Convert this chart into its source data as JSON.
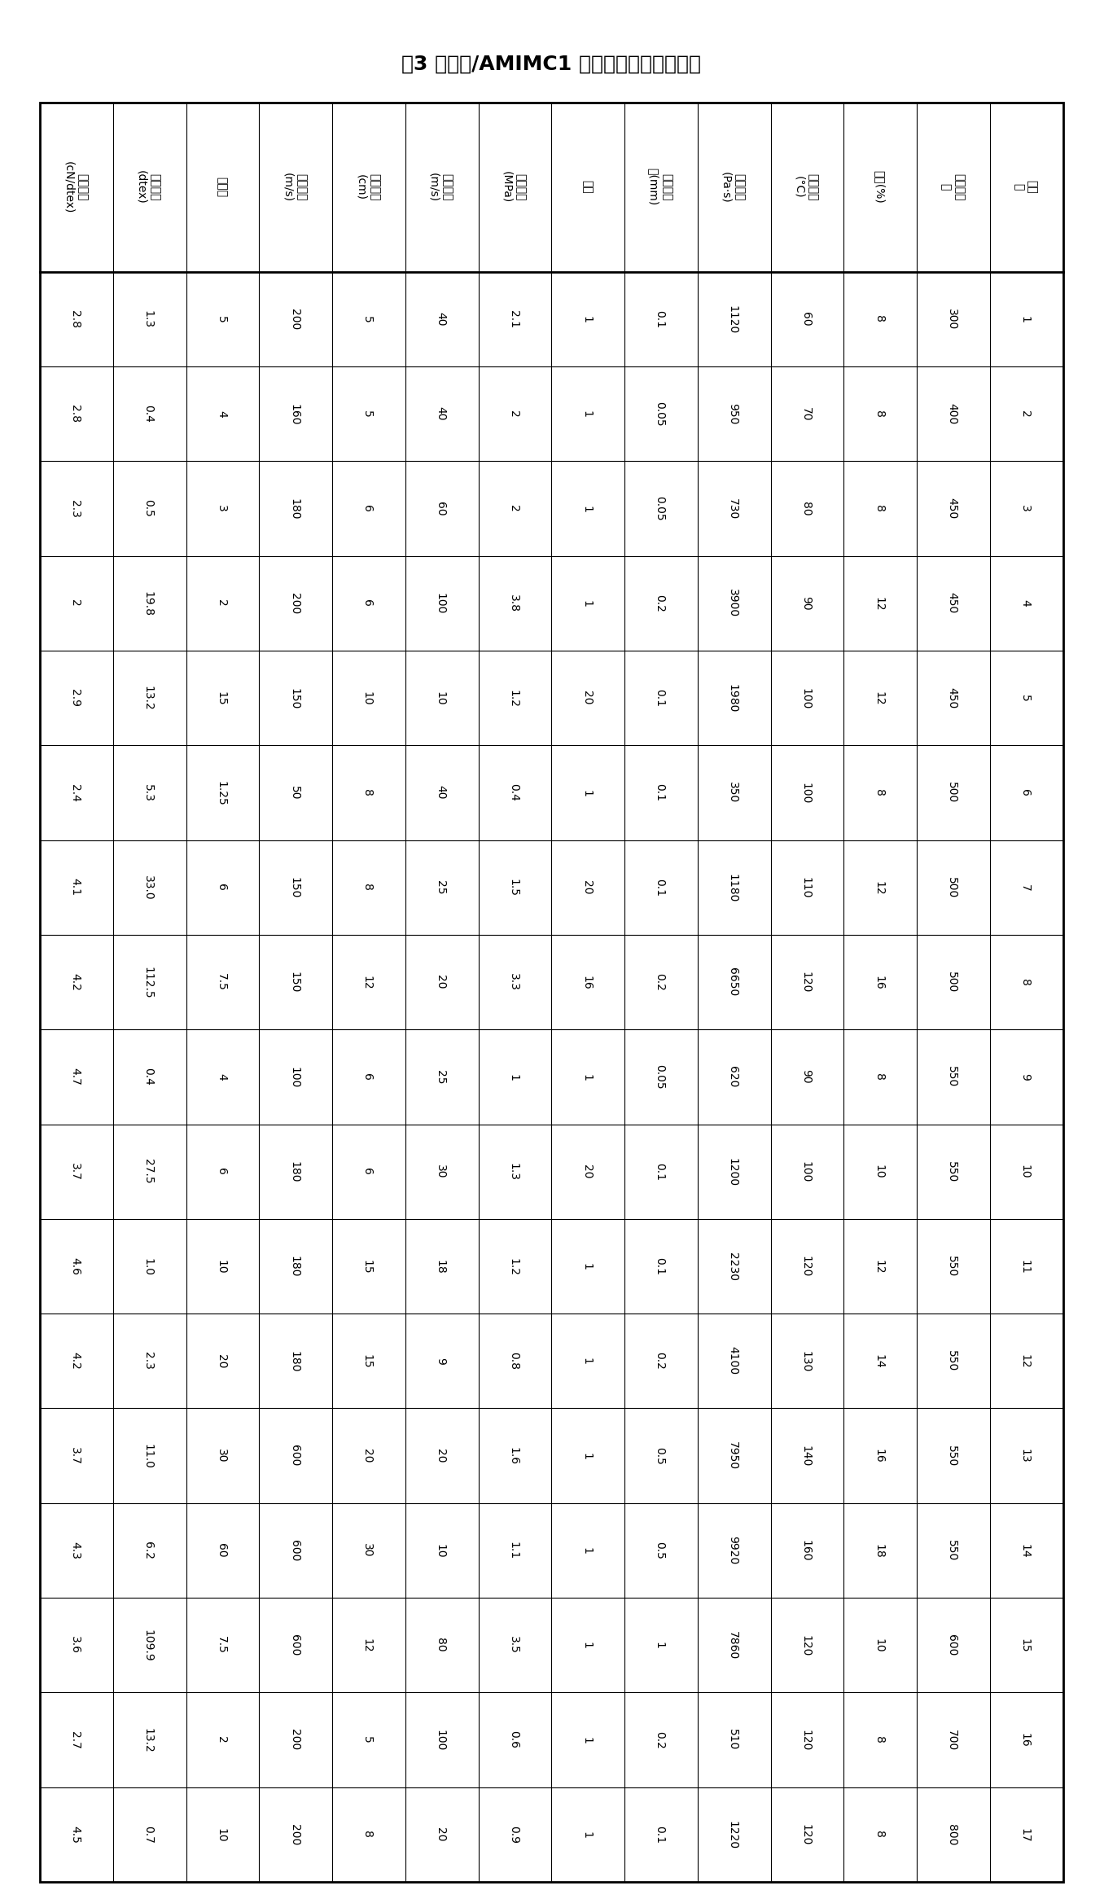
{
  "title": "表3 纤维素/AMIMC1 溶液干喷湿纺的实施例",
  "row_headers": [
    "实施\n例",
    "平均聚合\n度",
    "浓度(%)",
    "喷丝温度\n(°C)",
    "溶液黏度\n(Pa·s)",
    "喷丝板孔\n径(mm)",
    "孔数",
    "喷丝压力\n(MPa)",
    "喷丝速度\n(m/s)",
    "气隙长度\n(cm)",
    "牵伸速度\n(m/s)",
    "牵伸比",
    "产品纤度\n(dtex)",
    "拉伸强度\n(cN/dtex)"
  ],
  "col_labels": [
    "1",
    "2",
    "3",
    "4",
    "5",
    "6",
    "7",
    "8",
    "9",
    "10",
    "11",
    "12",
    "13",
    "14",
    "15",
    "16",
    "17"
  ],
  "data_rows": [
    [
      "1",
      "2",
      "3",
      "4",
      "5",
      "6",
      "7",
      "8",
      "9",
      "10",
      "11",
      "12",
      "13",
      "14",
      "15",
      "16",
      "17"
    ],
    [
      "300",
      "400",
      "450",
      "450",
      "450",
      "500",
      "500",
      "500",
      "550",
      "550",
      "550",
      "550",
      "550",
      "550",
      "600",
      "700",
      "800"
    ],
    [
      "8",
      "8",
      "8",
      "12",
      "12",
      "8",
      "12",
      "16",
      "8",
      "10",
      "12",
      "14",
      "16",
      "18",
      "10",
      "8",
      "8"
    ],
    [
      "60",
      "70",
      "80",
      "90",
      "100",
      "100",
      "110",
      "120",
      "90",
      "100",
      "120",
      "130",
      "140",
      "160",
      "120",
      "120",
      "120"
    ],
    [
      "1120",
      "950",
      "730",
      "3900",
      "1980",
      "350",
      "1180",
      "6650",
      "620",
      "1200",
      "2230",
      "4100",
      "7950",
      "9920",
      "7860",
      "510",
      "1220"
    ],
    [
      "0.1",
      "0.05",
      "0.05",
      "0.2",
      "0.1",
      "0.1",
      "0.1",
      "0.2",
      "0.05",
      "0.1",
      "0.1",
      "0.2",
      "0.5",
      "0.5",
      "1",
      "0.2",
      "0.1"
    ],
    [
      "1",
      "1",
      "1",
      "1",
      "20",
      "1",
      "20",
      "16",
      "1",
      "20",
      "1",
      "1",
      "1",
      "1",
      "1",
      "1",
      "1"
    ],
    [
      "2.1",
      "2",
      "2",
      "3.8",
      "1.2",
      "0.4",
      "1.5",
      "3.3",
      "1",
      "1.3",
      "1.2",
      "0.8",
      "1.6",
      "1.1",
      "3.5",
      "0.6",
      "0.9"
    ],
    [
      "40",
      "40",
      "60",
      "100",
      "10",
      "40",
      "25",
      "20",
      "25",
      "30",
      "18",
      "9",
      "20",
      "10",
      "80",
      "100",
      "20"
    ],
    [
      "5",
      "5",
      "6",
      "6",
      "10",
      "8",
      "8",
      "12",
      "6",
      "6",
      "15",
      "15",
      "20",
      "30",
      "12",
      "5",
      "8"
    ],
    [
      "200",
      "160",
      "180",
      "200",
      "150",
      "50",
      "150",
      "150",
      "100",
      "180",
      "180",
      "180",
      "600",
      "600",
      "600",
      "200",
      "200"
    ],
    [
      "5",
      "4",
      "3",
      "2",
      "15",
      "1.25",
      "6",
      "7.5",
      "4",
      "6",
      "10",
      "20",
      "30",
      "60",
      "7.5",
      "2",
      "10"
    ],
    [
      "1.3",
      "0.4",
      "0.5",
      "19.8",
      "13.2",
      "5.3",
      "33.0",
      "112.5",
      "0.4",
      "27.5",
      "1.0",
      "2.3",
      "11.0",
      "6.2",
      "109.9",
      "13.2",
      "0.7"
    ],
    [
      "2.8",
      "2.8",
      "2.3",
      "2",
      "2.9",
      "2.4",
      "4.1",
      "4.2",
      "4.7",
      "3.7",
      "4.6",
      "4.2",
      "3.7",
      "4.3",
      "3.6",
      "2.7",
      "4.5"
    ]
  ],
  "bg_color": "#ffffff",
  "line_color": "#000000"
}
